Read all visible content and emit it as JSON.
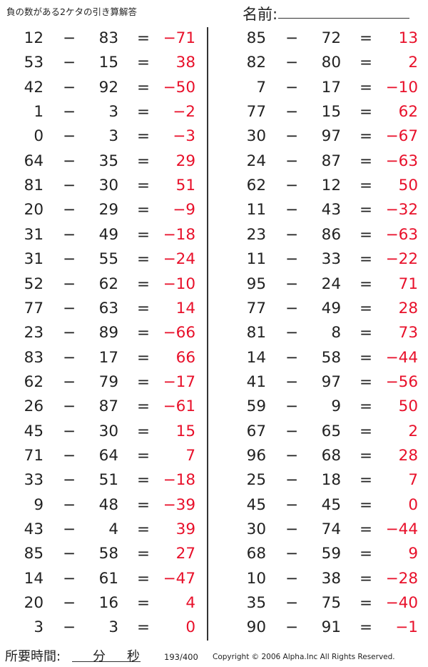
{
  "header": {
    "title": "負の数がある2ケタの引き算解答",
    "name_label": "名前:"
  },
  "operator": "−",
  "equals": "=",
  "answer_color": "#e8102a",
  "left_column": [
    [
      12,
      83,
      -71
    ],
    [
      53,
      15,
      38
    ],
    [
      42,
      92,
      -50
    ],
    [
      1,
      3,
      -2
    ],
    [
      0,
      3,
      -3
    ],
    [
      64,
      35,
      29
    ],
    [
      81,
      30,
      51
    ],
    [
      20,
      29,
      -9
    ],
    [
      31,
      49,
      -18
    ],
    [
      31,
      55,
      -24
    ],
    [
      52,
      62,
      -10
    ],
    [
      77,
      63,
      14
    ],
    [
      23,
      89,
      -66
    ],
    [
      83,
      17,
      66
    ],
    [
      62,
      79,
      -17
    ],
    [
      26,
      87,
      -61
    ],
    [
      45,
      30,
      15
    ],
    [
      71,
      64,
      7
    ],
    [
      33,
      51,
      -18
    ],
    [
      9,
      48,
      -39
    ],
    [
      43,
      4,
      39
    ],
    [
      85,
      58,
      27
    ],
    [
      14,
      61,
      -47
    ],
    [
      20,
      16,
      4
    ],
    [
      3,
      3,
      0
    ]
  ],
  "right_column": [
    [
      85,
      72,
      13
    ],
    [
      82,
      80,
      2
    ],
    [
      7,
      17,
      -10
    ],
    [
      77,
      15,
      62
    ],
    [
      30,
      97,
      -67
    ],
    [
      24,
      87,
      -63
    ],
    [
      62,
      12,
      50
    ],
    [
      11,
      43,
      -32
    ],
    [
      23,
      86,
      -63
    ],
    [
      11,
      33,
      -22
    ],
    [
      95,
      24,
      71
    ],
    [
      77,
      49,
      28
    ],
    [
      81,
      8,
      73
    ],
    [
      14,
      58,
      -44
    ],
    [
      41,
      97,
      -56
    ],
    [
      59,
      9,
      50
    ],
    [
      67,
      65,
      2
    ],
    [
      96,
      68,
      28
    ],
    [
      25,
      18,
      7
    ],
    [
      45,
      45,
      0
    ],
    [
      30,
      74,
      -44
    ],
    [
      68,
      59,
      9
    ],
    [
      10,
      38,
      -28
    ],
    [
      35,
      75,
      -40
    ],
    [
      90,
      91,
      -1
    ]
  ],
  "footer": {
    "time_label": "所要時間:",
    "minutes": "分",
    "seconds": "秒",
    "page": "193/400",
    "copyright": "Copyright © 2006 Alpha.Inc All Rights Reserved."
  }
}
